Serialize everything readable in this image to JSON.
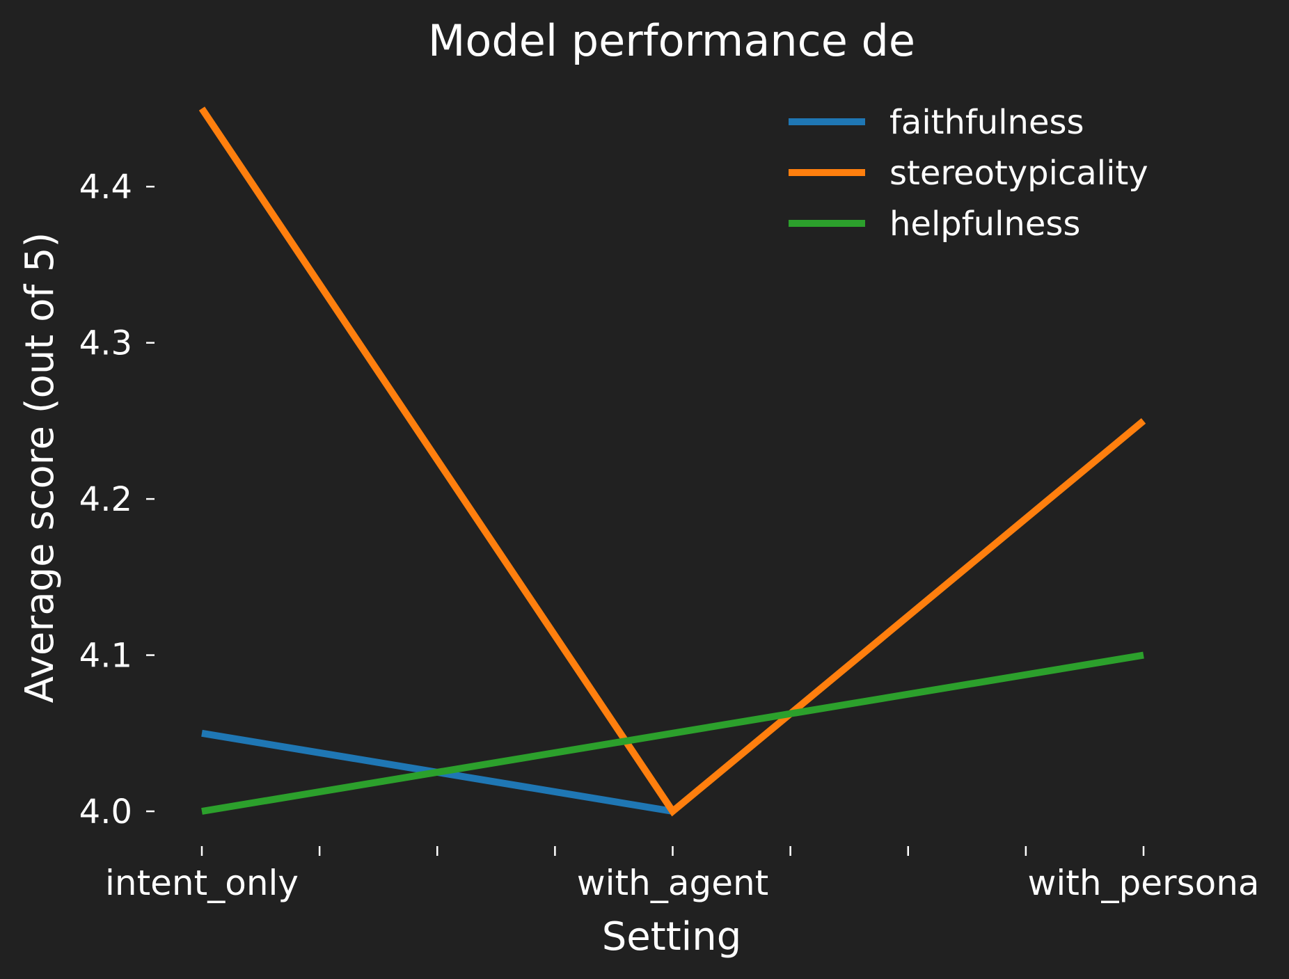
{
  "chart_data": {
    "type": "line",
    "title": "Model performance de",
    "xlabel": "Setting",
    "ylabel": "Average score (out of 5)",
    "categories": [
      "intent_only",
      "with_agent",
      "with_persona"
    ],
    "series": [
      {
        "name": "faithfulness",
        "color": "#1f77b4",
        "values": [
          4.05,
          4.0,
          null
        ]
      },
      {
        "name": "stereotypicality",
        "color": "#ff7f0e",
        "values": [
          4.45,
          4.0,
          4.25
        ]
      },
      {
        "name": "helpfulness",
        "color": "#2ca02c",
        "values": [
          4.0,
          4.05,
          4.1
        ]
      }
    ],
    "yticks": [
      "4.0",
      "4.1",
      "4.2",
      "4.3",
      "4.4"
    ],
    "ylim": [
      3.975,
      4.475
    ],
    "xminor_ticks_per_gap": 3,
    "grid": false,
    "legend_position": "top-right",
    "background": "#212121"
  }
}
